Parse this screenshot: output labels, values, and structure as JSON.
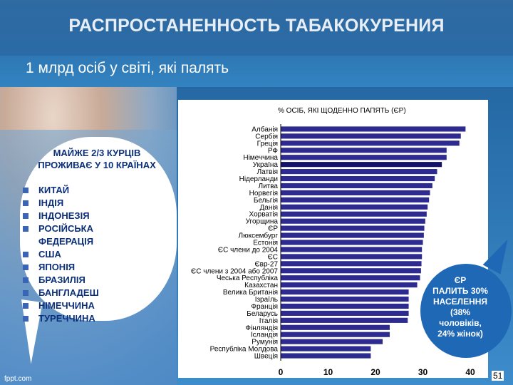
{
  "slide": {
    "title": "РАСПРОСТАНЕННОСТЬ ТАБАКОКУРЕНИЯ",
    "subtitle": "1 млрд осіб у світі, які палять",
    "footer_brand": "fppt.com",
    "page_number": "51"
  },
  "left_bubble": {
    "heading": "МАЙЖЕ 2/3 КУРЦІВ ПРОЖИВАЄ У 10 КРАЇНАХ",
    "items": [
      {
        "label": "КИТАЙ",
        "marker": true
      },
      {
        "label": "ІНДІЯ",
        "marker": true
      },
      {
        "label": "ІНДОНЕЗІЯ",
        "marker": true
      },
      {
        "label": "РОСІЙСЬКА",
        "marker": true
      },
      {
        "label": "ФЕДЕРАЦІЯ",
        "marker": false
      },
      {
        "label": "США",
        "marker": true
      },
      {
        "label": "ЯПОНІЯ",
        "marker": true
      },
      {
        "label": "БРАЗИЛІЯ",
        "marker": true
      },
      {
        "label": "БАНГЛАДЕШ",
        "marker": true
      },
      {
        "label": "НІМЕЧЧИНА",
        "marker": true
      },
      {
        "label": "ТУРЕЧЧИНА",
        "marker": true
      }
    ]
  },
  "callout": {
    "lines": [
      "ЄР",
      "ПАЛИТЬ 30%",
      "НАСЕЛЕННЯ",
      "(38%",
      "чоловіків,",
      "24% жінок)"
    ]
  },
  "colors": {
    "bar": "#2d2b8f",
    "highlight": "#141267",
    "callout": "#1f68b6",
    "bullet_text": "#0b2f7a"
  },
  "chart_data": {
    "type": "bar",
    "orientation": "horizontal",
    "title": "% ОСІБ, ЯКІ ЩОДЕННО ПАПЯТЬ (ЄР)",
    "categories": [
      "Албанія",
      "Сербія",
      "Греція",
      "РФ",
      "Німеччина",
      "Україна",
      "Латвія",
      "Нідерланди",
      "Литва",
      "Норвегія",
      "Бельгія",
      "Данія",
      "Хорватія",
      "Угорщина",
      "ЄР",
      "Люксембург",
      "Естонія",
      "ЄС члени до 2004",
      "ЄС",
      "Євр-27",
      "ЄС члени з 2004 або 2007",
      "Чеська Республіка",
      "Казахстан",
      "Велика Британія",
      "Ізраїль",
      "Франція",
      "Беларусь",
      "Італія",
      "Фінляндія",
      "Ісландія",
      "Румунія",
      "Республіка Молдова",
      "Швеція"
    ],
    "values": [
      39,
      38,
      37.7,
      35,
      35,
      34,
      33,
      32.5,
      32,
      31.5,
      31.3,
      31,
      30.8,
      30.5,
      30.3,
      30.2,
      30,
      29.8,
      29.8,
      29.7,
      29.6,
      29.4,
      28.8,
      27,
      27,
      27,
      27,
      26.8,
      23,
      23,
      21.5,
      19,
      19
    ],
    "highlight_category": "Україна",
    "xlim": [
      0,
      43
    ],
    "xticks": [
      0,
      10,
      20,
      30,
      40
    ],
    "grid": false
  }
}
